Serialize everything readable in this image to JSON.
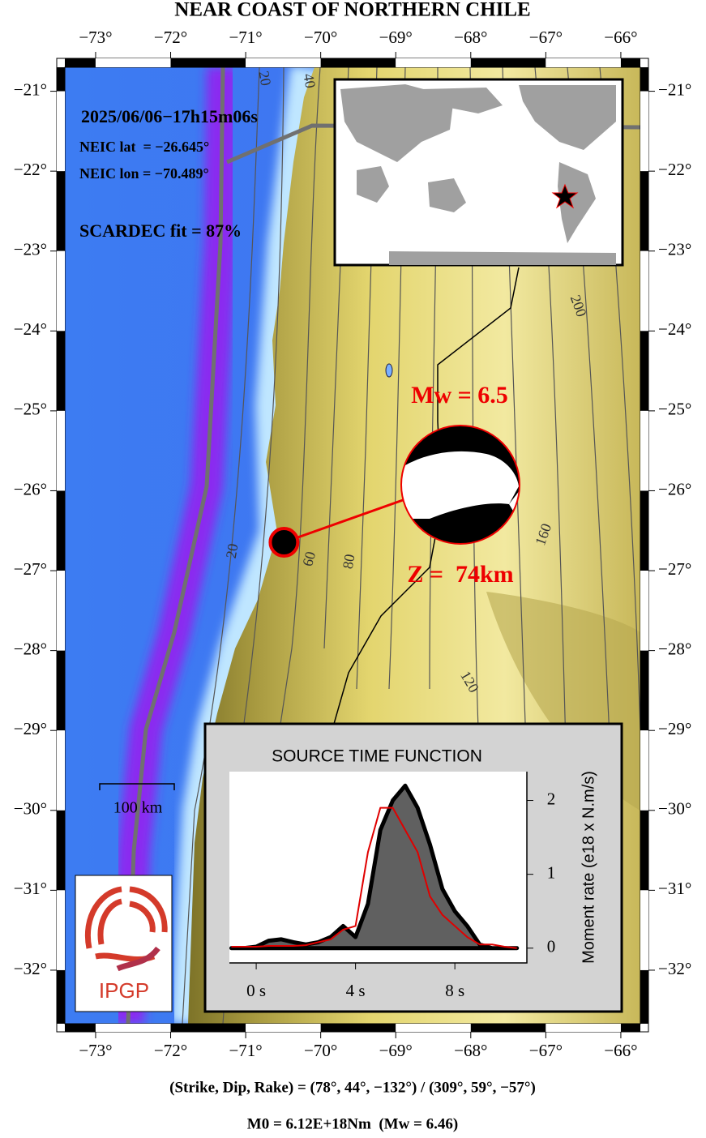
{
  "header": {
    "title": "NEAR COAST OF NORTHERN CHILE"
  },
  "map": {
    "lonlim": [
      -73.41,
      -65.74
    ],
    "latlim": [
      -20.7,
      -32.67
    ],
    "lonticks": [
      {
        "value": -73,
        "label": "−73°"
      },
      {
        "value": -72,
        "label": "−72°"
      },
      {
        "value": -71,
        "label": "−71°"
      },
      {
        "value": -70,
        "label": "−70°"
      },
      {
        "value": -69,
        "label": "−69°"
      },
      {
        "value": -68,
        "label": "−68°"
      },
      {
        "value": -67,
        "label": "−67°"
      },
      {
        "value": -66,
        "label": "−66°"
      }
    ],
    "latticks": [
      {
        "value": -21,
        "label": "−21°"
      },
      {
        "value": -22,
        "label": "−22°"
      },
      {
        "value": -23,
        "label": "−23°"
      },
      {
        "value": -24,
        "label": "−24°"
      },
      {
        "value": -25,
        "label": "−25°"
      },
      {
        "value": -26,
        "label": "−26°"
      },
      {
        "value": -27,
        "label": "−27°"
      },
      {
        "value": -28,
        "label": "−28°"
      },
      {
        "value": -29,
        "label": "−29°"
      },
      {
        "value": -30,
        "label": "−30°"
      },
      {
        "value": -31,
        "label": "−31°"
      },
      {
        "value": -32,
        "label": "−32°"
      }
    ],
    "epicenter": {
      "lat": -26.645,
      "lon": -70.489
    },
    "contour_labels": [
      "20",
      "40",
      "200",
      "20",
      "60",
      "80",
      "160",
      "120"
    ],
    "scale_label": "100 km"
  },
  "event": {
    "date": "2025/06/06−17h15m06s",
    "lat": "NEIC lat  = −26.645°",
    "lon": "NEIC lon = −70.489°",
    "fit": "SCARDEC fit = 87%",
    "mw": "Mw = 6.5",
    "depth": "Z =  74km"
  },
  "logo": {
    "text": "IPGP"
  },
  "stf": {
    "title": "SOURCE TIME FUNCTION",
    "ylabel": "Moment rate (e18 x N.m/s)",
    "xlim": [
      -1.08,
      10.9
    ],
    "ylim": [
      -0.2,
      2.39
    ],
    "xticks": [
      {
        "value": 0,
        "label": "0 s"
      },
      {
        "value": 4,
        "label": "4 s"
      },
      {
        "value": 8,
        "label": "8 s"
      }
    ],
    "yticks": [
      0,
      1,
      2
    ],
    "x": [
      -1,
      -0.5,
      0,
      0.5,
      1,
      1.5,
      2,
      2.5,
      3,
      3.5,
      4,
      4.5,
      5,
      5.5,
      6,
      6.5,
      7,
      7.5,
      8,
      8.5,
      9,
      9.5,
      10,
      10.5
    ],
    "series": [
      {
        "color": "#606060",
        "values": [
          0,
          0,
          0.02,
          0.1,
          0.12,
          0.08,
          0.05,
          0.08,
          0.15,
          0.3,
          0.15,
          0.6,
          1.6,
          2.0,
          2.2,
          1.9,
          1.4,
          0.8,
          0.5,
          0.3,
          0.05,
          0,
          0,
          0
        ]
      },
      {
        "color": "#e00000",
        "values": [
          0.02,
          0.02,
          0.02,
          0.03,
          0.03,
          0.03,
          0.04,
          0.08,
          0.12,
          0.25,
          0.3,
          1.3,
          1.9,
          1.9,
          1.6,
          1.3,
          0.7,
          0.45,
          0.3,
          0.15,
          0.05,
          0.05,
          0.02,
          0
        ]
      }
    ]
  },
  "footer": {
    "mechanism": "(Strike, Dip, Rake) = (78°, 44°, −132°) / (309°, 59°, −57°)",
    "moment": "M0 = 6.12E+18Nm  (Mw = 6.46)"
  }
}
